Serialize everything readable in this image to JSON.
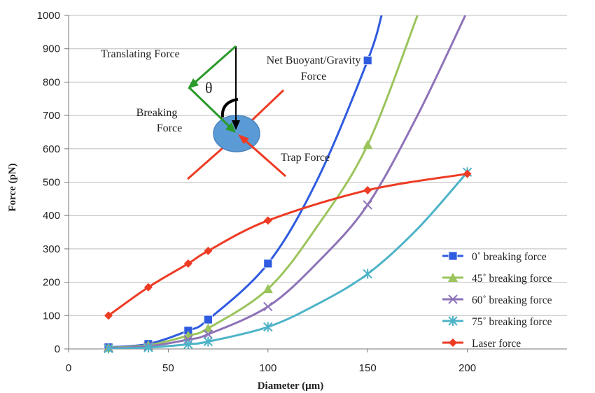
{
  "chart_data": {
    "type": "line",
    "xlabel": "Diameter (µm)",
    "ylabel": "Force (pN)",
    "xlim": [
      0,
      250
    ],
    "ylim": [
      0,
      1000
    ],
    "x_ticks": [
      0,
      50,
      100,
      150,
      200
    ],
    "y_ticks": [
      0,
      100,
      200,
      300,
      400,
      500,
      600,
      700,
      800,
      900,
      1000
    ],
    "grid": "horizontal",
    "legend_position": "bottom-right",
    "series": [
      {
        "name": "0˚ breaking force",
        "color": "#2F5BE0",
        "marker": "square",
        "x": [
          20,
          40,
          60,
          70,
          100,
          150
        ],
        "y": [
          5,
          15,
          55,
          88,
          256,
          865
        ],
        "curve_x": [
          20,
          40,
          60,
          70,
          100,
          125,
          150,
          157
        ],
        "curve_y": [
          5,
          15,
          55,
          88,
          256,
          510,
          865,
          1000
        ]
      },
      {
        "name": "45˚ breaking force",
        "color": "#9BC45C",
        "marker": "triangle",
        "x": [
          20,
          40,
          60,
          70,
          100,
          150
        ],
        "y": [
          4,
          11,
          40,
          62,
          180,
          612
        ],
        "curve_x": [
          20,
          40,
          60,
          70,
          100,
          125,
          150,
          175
        ],
        "curve_y": [
          4,
          11,
          40,
          62,
          180,
          370,
          612,
          1000
        ]
      },
      {
        "name": "60˚ breaking force",
        "color": "#8E73B8",
        "marker": "x",
        "x": [
          20,
          40,
          60,
          70,
          100,
          150
        ],
        "y": [
          3,
          8,
          28,
          44,
          127,
          432
        ],
        "curve_x": [
          20,
          40,
          60,
          70,
          100,
          125,
          150,
          175,
          199
        ],
        "curve_y": [
          3,
          8,
          28,
          44,
          127,
          260,
          432,
          700,
          1000
        ]
      },
      {
        "name": "75˚ breaking force",
        "color": "#4DB3C8",
        "marker": "asterisk",
        "x": [
          20,
          40,
          60,
          70,
          100,
          150,
          200
        ],
        "y": [
          1,
          4,
          14,
          22,
          66,
          225,
          530
        ],
        "curve_x": [
          20,
          40,
          60,
          70,
          100,
          125,
          150,
          175,
          200
        ],
        "curve_y": [
          1,
          4,
          14,
          22,
          66,
          135,
          225,
          360,
          530
        ]
      },
      {
        "name": "Laser force",
        "color": "#EE3B24",
        "marker": "diamond",
        "x": [
          20,
          40,
          60,
          70,
          100,
          150,
          200
        ],
        "y": [
          100,
          185,
          256,
          294,
          385,
          476,
          525
        ],
        "curve_x": [
          20,
          40,
          60,
          70,
          100,
          150,
          200
        ],
        "curve_y": [
          100,
          185,
          256,
          294,
          385,
          476,
          525
        ]
      }
    ]
  },
  "inset": {
    "translating_force": "Translating Force",
    "net_buoyant_line1": "Net Buoyant/Gravity",
    "net_buoyant_line2": "Force",
    "theta": "θ",
    "breaking_line1": "Breaking",
    "breaking_line2": "Force",
    "trap_force": "Trap Force",
    "colors": {
      "green": "#2A9A2A",
      "red": "#EE3B24",
      "sphere": "#5B9BD5",
      "black": "#000000"
    }
  }
}
